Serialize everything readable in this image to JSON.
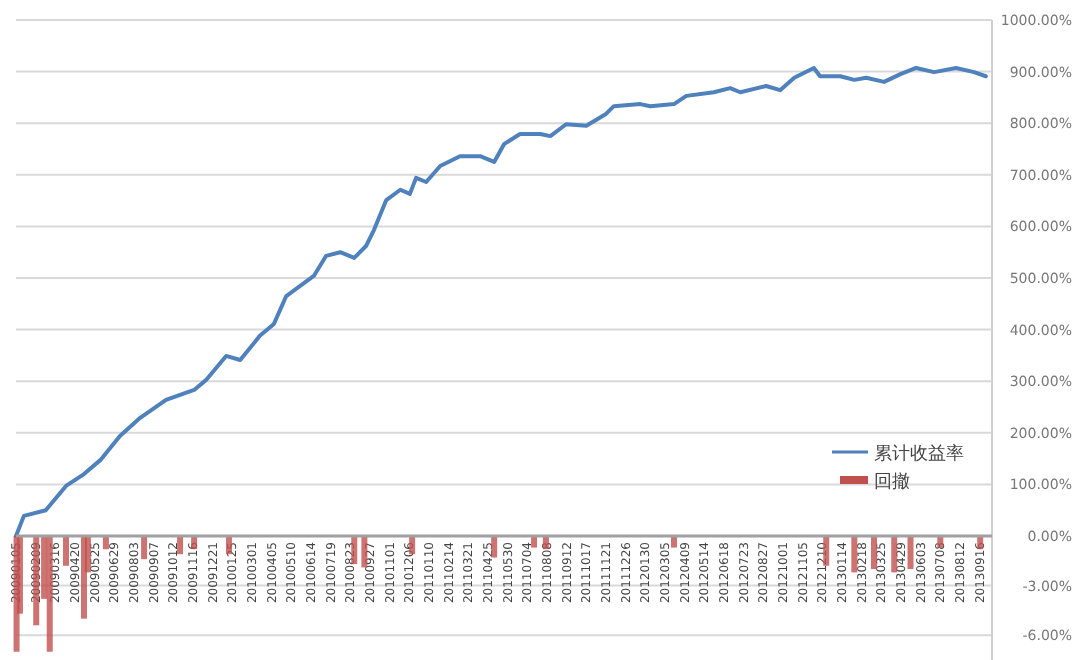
{
  "chart_data": [
    {
      "type": "line",
      "xlim": [
        "2009-01-05",
        "2013-10-08"
      ],
      "ylim": [
        0,
        1000
      ],
      "yticks": [
        {
          "value": 100,
          "label": "100.00%"
        },
        {
          "value": 200,
          "label": "200.00%"
        },
        {
          "value": 300,
          "label": "300.00%"
        },
        {
          "value": 400,
          "label": "400.00%"
        },
        {
          "value": 500,
          "label": "500.00%"
        },
        {
          "value": 600,
          "label": "600.00%"
        },
        {
          "value": 700,
          "label": "700.00%"
        },
        {
          "value": 800,
          "label": "800.00%"
        },
        {
          "value": 900,
          "label": "900.00%"
        },
        {
          "value": 1000,
          "label": "1000.00%"
        }
      ],
      "grid": "y",
      "legend": "bottom right",
      "tick_labels": "y",
      "series": [
        {
          "name": "累计收益率",
          "color": "#4f81bd",
          "x": [
            "2009-01-05",
            "2009-01-19",
            "2009-02-27",
            "2009-04-04",
            "2009-05-06",
            "2009-06-04",
            "2009-07-09",
            "2009-08-14",
            "2009-09-29",
            "2009-11-18",
            "2009-12-09",
            "2010-01-14",
            "2010-02-08",
            "2010-03-15",
            "2010-04-09",
            "2010-05-01",
            "2010-06-19",
            "2010-07-11",
            "2010-08-05",
            "2010-08-30",
            "2010-09-20",
            "2010-10-04",
            "2010-10-26",
            "2010-11-20",
            "2010-12-07",
            "2010-12-18",
            "2011-01-05",
            "2011-01-30",
            "2011-03-06",
            "2011-04-11",
            "2011-05-06",
            "2011-05-24",
            "2011-06-21",
            "2011-07-16",
            "2011-07-27",
            "2011-08-14",
            "2011-09-11",
            "2011-10-17",
            "2011-11-21",
            "2011-12-05",
            "2012-01-21",
            "2012-02-08",
            "2012-03-21",
            "2012-04-12",
            "2012-05-31",
            "2012-06-29",
            "2012-07-17",
            "2012-09-01",
            "2012-09-26",
            "2012-10-21",
            "2012-11-25",
            "2012-12-06",
            "2013-01-11",
            "2013-02-05",
            "2013-02-26",
            "2013-03-30",
            "2013-04-28",
            "2013-05-26",
            "2013-06-27",
            "2013-08-05",
            "2013-09-06",
            "2013-09-27"
          ],
          "values": [
            0,
            39,
            50,
            97,
            120,
            147,
            194,
            229,
            264,
            283,
            302,
            349,
            341,
            388,
            411,
            465,
            504,
            543,
            550,
            539,
            562,
            593,
            651,
            671,
            663,
            694,
            686,
            717,
            736,
            736,
            725,
            760,
            779,
            779,
            779,
            775,
            798,
            795,
            818,
            833,
            837,
            833,
            837,
            853,
            860,
            868,
            860,
            872,
            864,
            888,
            907,
            891,
            891,
            884,
            888,
            880,
            895,
            907,
            899,
            907,
            899,
            891
          ]
        }
      ]
    },
    {
      "type": "bar",
      "xlim": [
        "2009-01-05",
        "2013-10-08"
      ],
      "ylim": [
        -7.5,
        0
      ],
      "yticks": [
        {
          "value": 0,
          "label": "0.00%"
        },
        {
          "value": -3,
          "label": "-3.00%"
        },
        {
          "value": -6,
          "label": "-6.00%"
        }
      ],
      "grid": "y",
      "xticks": [
        {
          "value": "2009-01-05",
          "label": "20090105"
        },
        {
          "value": "2009-02-09",
          "label": "20090209"
        },
        {
          "value": "2009-03-16",
          "label": "20090316"
        },
        {
          "value": "2009-04-20",
          "label": "20090420"
        },
        {
          "value": "2009-05-25",
          "label": "20090525"
        },
        {
          "value": "2009-06-29",
          "label": "20090629"
        },
        {
          "value": "2009-08-03",
          "label": "20090803"
        },
        {
          "value": "2009-09-07",
          "label": "20090907"
        },
        {
          "value": "2009-10-12",
          "label": "20091012"
        },
        {
          "value": "2009-11-16",
          "label": "20091116"
        },
        {
          "value": "2009-12-21",
          "label": "20091221"
        },
        {
          "value": "2010-01-25",
          "label": "20100125"
        },
        {
          "value": "2010-03-01",
          "label": "20100301"
        },
        {
          "value": "2010-04-05",
          "label": "20100405"
        },
        {
          "value": "2010-05-10",
          "label": "20100510"
        },
        {
          "value": "2010-06-14",
          "label": "20100614"
        },
        {
          "value": "2010-07-19",
          "label": "20100719"
        },
        {
          "value": "2010-08-23",
          "label": "20100823"
        },
        {
          "value": "2010-09-27",
          "label": "20100927"
        },
        {
          "value": "2010-11-01",
          "label": "20101101"
        },
        {
          "value": "2010-12-06",
          "label": "20101206"
        },
        {
          "value": "2011-01-10",
          "label": "20110110"
        },
        {
          "value": "2011-02-14",
          "label": "20110214"
        },
        {
          "value": "2011-03-21",
          "label": "20110321"
        },
        {
          "value": "2011-04-25",
          "label": "20110425"
        },
        {
          "value": "2011-05-30",
          "label": "20110530"
        },
        {
          "value": "2011-07-04",
          "label": "20110704"
        },
        {
          "value": "2011-08-08",
          "label": "20110808"
        },
        {
          "value": "2011-09-12",
          "label": "20110912"
        },
        {
          "value": "2011-10-17",
          "label": "20111017"
        },
        {
          "value": "2011-11-21",
          "label": "20111121"
        },
        {
          "value": "2011-12-26",
          "label": "20111226"
        },
        {
          "value": "2012-01-30",
          "label": "20120130"
        },
        {
          "value": "2012-03-05",
          "label": "20120305"
        },
        {
          "value": "2012-04-09",
          "label": "20120409"
        },
        {
          "value": "2012-05-14",
          "label": "20120514"
        },
        {
          "value": "2012-06-18",
          "label": "20120618"
        },
        {
          "value": "2012-07-23",
          "label": "20120723"
        },
        {
          "value": "2012-08-27",
          "label": "20120827"
        },
        {
          "value": "2012-10-01",
          "label": "20121001"
        },
        {
          "value": "2012-11-05",
          "label": "20121105"
        },
        {
          "value": "2012-12-10",
          "label": "20121210"
        },
        {
          "value": "2013-01-14",
          "label": "20130114"
        },
        {
          "value": "2013-02-18",
          "label": "20130218"
        },
        {
          "value": "2013-03-25",
          "label": "20130325"
        },
        {
          "value": "2013-04-29",
          "label": "20130429"
        },
        {
          "value": "2013-06-03",
          "label": "20130603"
        },
        {
          "value": "2013-07-08",
          "label": "20130708"
        },
        {
          "value": "2013-08-12",
          "label": "20130812"
        },
        {
          "value": "2013-09-16",
          "label": "20130916"
        }
      ],
      "series": [
        {
          "name": "回撤",
          "color": "#c0504d",
          "x": [
            "2009-01-06",
            "2009-01-12",
            "2009-02-10",
            "2009-02-24",
            "2009-03-06",
            "2009-04-04",
            "2009-05-06",
            "2009-05-13",
            "2009-06-14",
            "2009-08-21",
            "2009-10-24",
            "2009-11-18",
            "2010-01-19",
            "2010-08-30",
            "2010-09-17",
            "2010-12-11",
            "2011-05-06",
            "2011-07-16",
            "2011-08-06",
            "2012-03-21",
            "2012-12-17",
            "2013-02-05",
            "2013-03-12",
            "2013-04-17",
            "2013-05-16",
            "2013-07-08",
            "2013-09-17"
          ],
          "values": [
            -7.0,
            -4.7,
            -5.4,
            -3.8,
            -7.0,
            -1.8,
            -5.0,
            -2.2,
            -0.8,
            -1.4,
            -1.1,
            -0.8,
            -1.1,
            -1.7,
            -1.9,
            -1.1,
            -1.3,
            -0.7,
            -0.8,
            -0.7,
            -1.8,
            -2.2,
            -2.0,
            -2.2,
            -2.0,
            -0.7,
            -0.8
          ]
        }
      ]
    }
  ]
}
